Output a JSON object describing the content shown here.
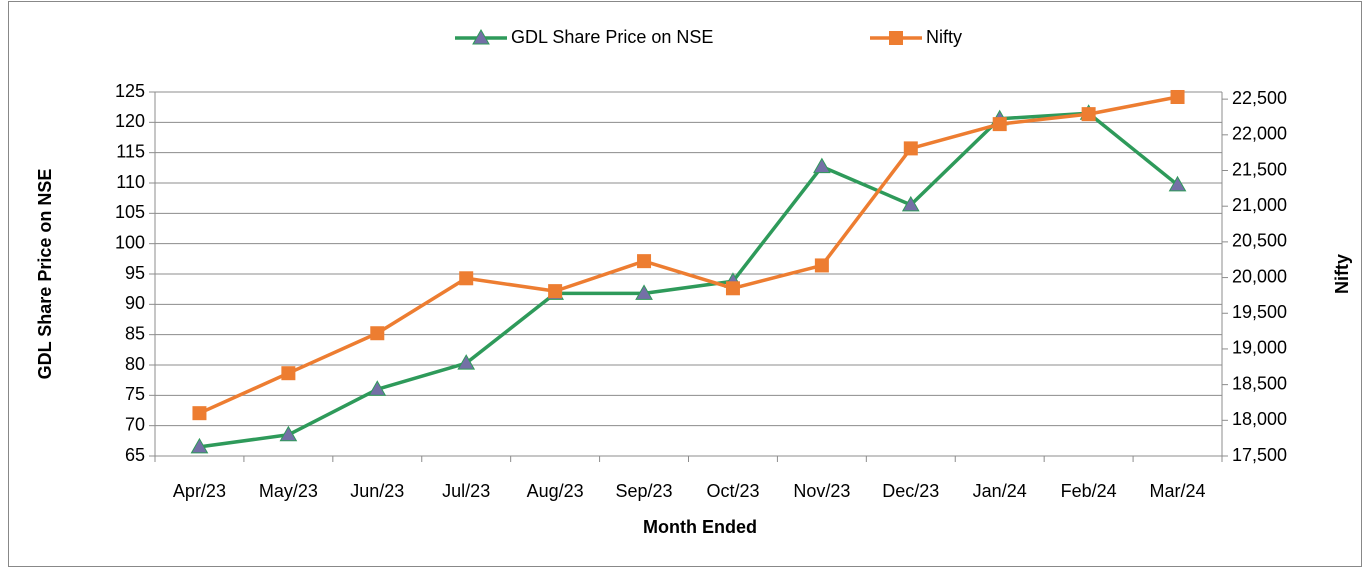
{
  "chart_data": {
    "type": "line",
    "categories": [
      "Apr/23",
      "May/23",
      "Jun/23",
      "Jul/23",
      "Aug/23",
      "Sep/23",
      "Oct/23",
      "Nov/23",
      "Dec/23",
      "Jan/24",
      "Feb/24",
      "Mar/24"
    ],
    "series": [
      {
        "name": "GDL Share Price on NSE",
        "color": "#2e9a5a",
        "marker": "triangle",
        "marker_color": "#7470a6",
        "values": [
          66.5,
          68.5,
          76,
          80.3,
          91.8,
          91.8,
          93.8,
          112.7,
          106.4,
          120.6,
          121.5,
          109.7
        ]
      },
      {
        "name": "Nifty",
        "color": "#ed7d31",
        "marker": "square",
        "marker_color": "#ed7d31",
        "axis": "y2",
        "values": [
          18100,
          18660,
          19220,
          19990,
          19810,
          20230,
          19850,
          20170,
          21810,
          22150,
          22290,
          22530
        ]
      }
    ],
    "ylabel": "GDL  Share Price on NSE",
    "y2label": "Nifty",
    "xlabel": "Month Ended",
    "ylim": [
      65,
      125
    ],
    "yticks": [
      65,
      70,
      75,
      80,
      85,
      90,
      95,
      100,
      105,
      110,
      115,
      120,
      125
    ],
    "y2lim": [
      17500,
      22600
    ],
    "y2ticks": [
      {
        "value": 17500,
        "label": "17,500"
      },
      {
        "value": 18000,
        "label": "18,000"
      },
      {
        "value": 18500,
        "label": "18,500"
      },
      {
        "value": 19000,
        "label": "19,000"
      },
      {
        "value": 19500,
        "label": "19,500"
      },
      {
        "value": 20000,
        "label": "20,000"
      },
      {
        "value": 20500,
        "label": "20,500"
      },
      {
        "value": 21000,
        "label": "21,000"
      },
      {
        "value": 21500,
        "label": "21,500"
      },
      {
        "value": 22000,
        "label": "22,000"
      },
      {
        "value": 22500,
        "label": "22,500"
      }
    ],
    "grid": true,
    "legend": "top"
  }
}
